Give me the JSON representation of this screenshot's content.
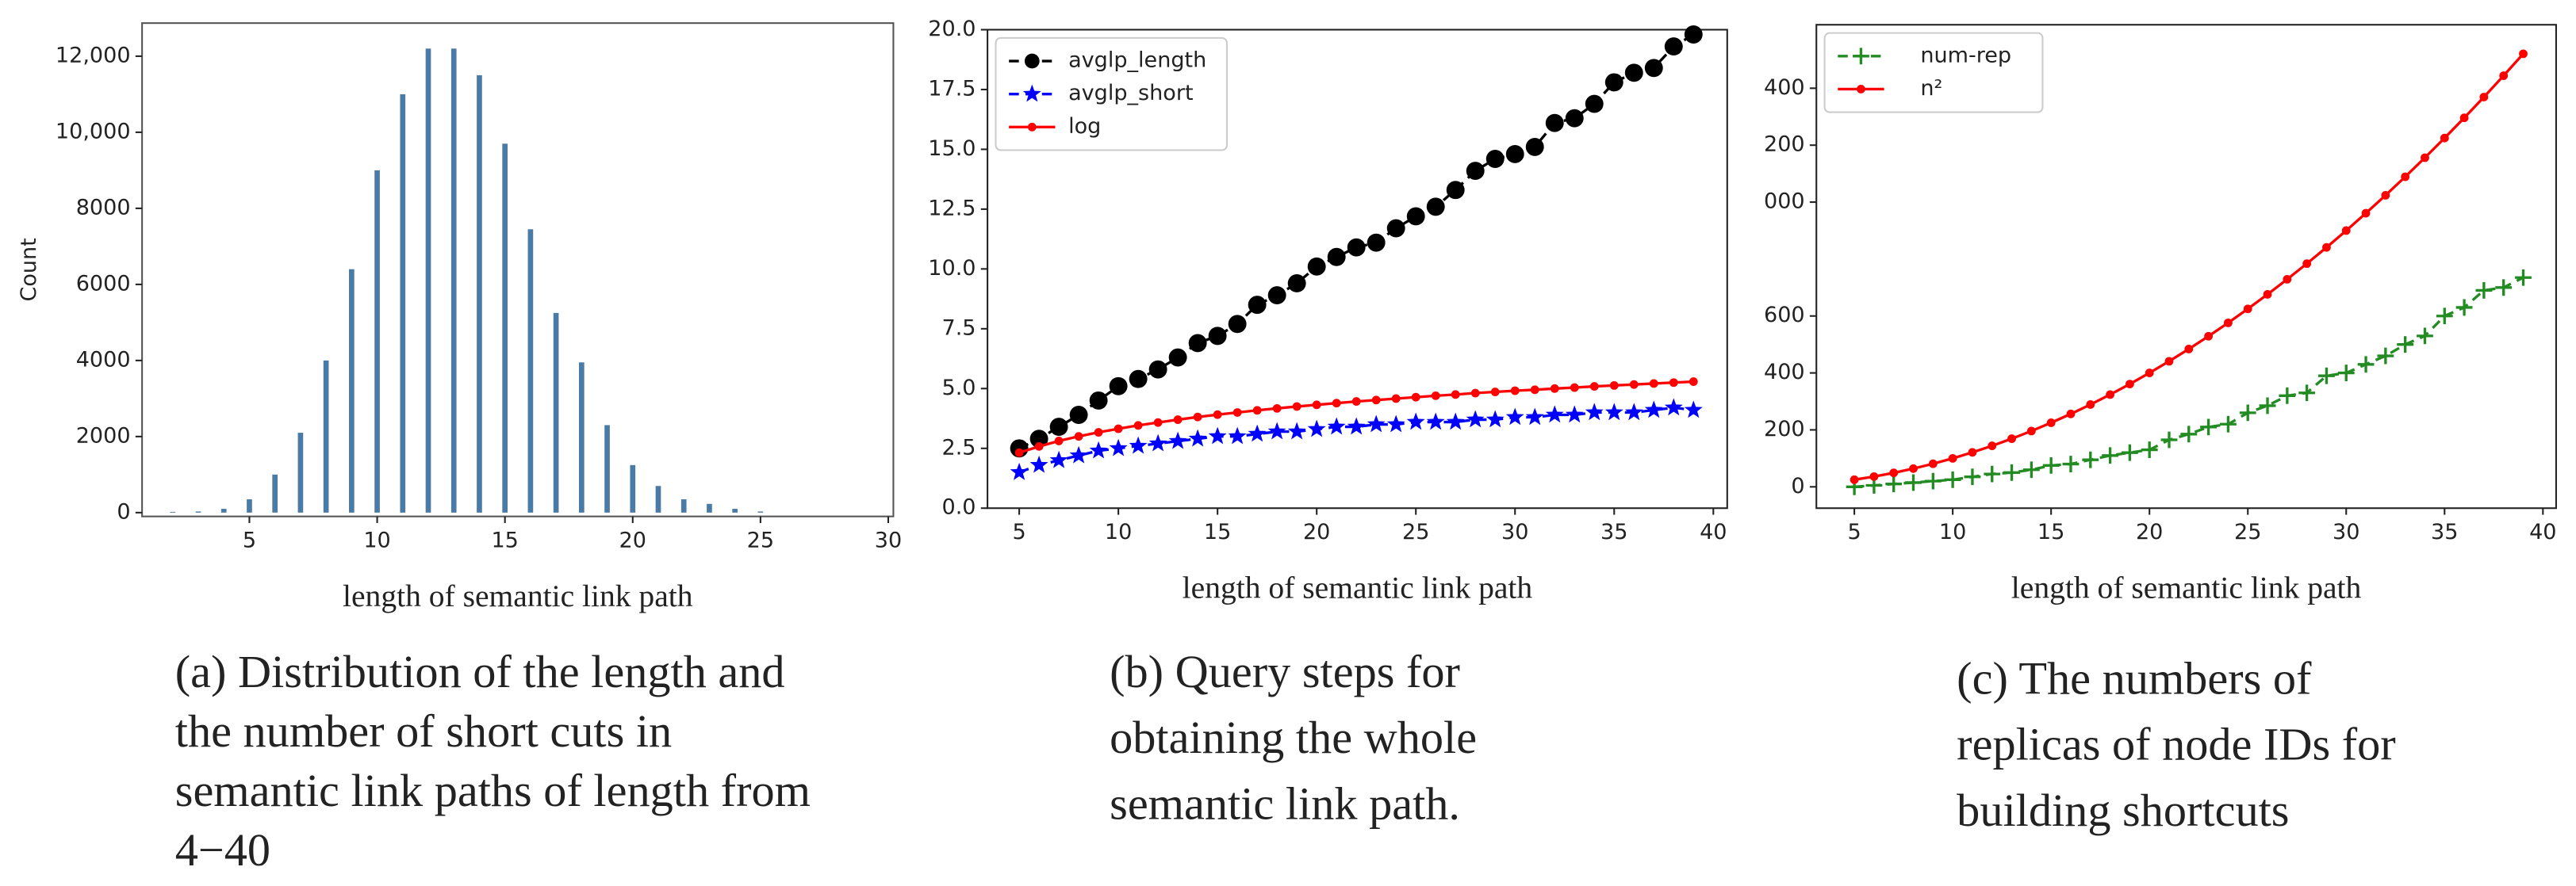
{
  "chart_data": [
    {
      "type": "bar",
      "ylabel": "Count",
      "xlabel": "length of semantic link path",
      "caption": [
        "(a) Distribution of the length and",
        "the number of short cuts in",
        "semantic link paths of length from",
        "4−40"
      ],
      "x": [
        2,
        3,
        4,
        5,
        6,
        7,
        8,
        9,
        10,
        11,
        12,
        13,
        14,
        15,
        16,
        17,
        18,
        19,
        20,
        21,
        22,
        23,
        24,
        25
      ],
      "values": [
        20,
        30,
        100,
        350,
        1000,
        2100,
        4000,
        6400,
        9000,
        11000,
        12200,
        12200,
        11500,
        9700,
        7450,
        5250,
        3950,
        2300,
        1250,
        700,
        350,
        230,
        100,
        30
      ],
      "color": "#4a7ba6",
      "xlim": [
        0.8,
        30.2
      ],
      "xticks": [
        5,
        10,
        15,
        20,
        25,
        30
      ],
      "ylim": [
        -100,
        12870
      ],
      "yticks": [
        0,
        2000,
        4000,
        6000,
        8000,
        {
          "value": 10000,
          "label": "10,000"
        },
        {
          "value": 12000,
          "label": "12,000"
        }
      ]
    },
    {
      "type": "line",
      "xlabel": "length of semantic link path",
      "caption": [
        "(b)  Query steps for",
        "obtaining the whole",
        "semantic link path."
      ],
      "x": [
        5,
        6,
        7,
        8,
        9,
        10,
        11,
        12,
        13,
        14,
        15,
        16,
        17,
        18,
        19,
        20,
        21,
        22,
        23,
        24,
        25,
        26,
        27,
        28,
        29,
        30,
        31,
        32,
        33,
        34,
        35,
        36,
        37,
        38,
        39
      ],
      "series": [
        {
          "name": "avglp_length",
          "color": "#000000",
          "marker": "circle",
          "linestyle": "dashed",
          "values": [
            2.5,
            2.9,
            3.4,
            3.9,
            4.5,
            5.1,
            5.4,
            5.8,
            6.3,
            6.9,
            7.2,
            7.7,
            8.5,
            8.9,
            9.4,
            10.1,
            10.5,
            10.9,
            11.1,
            11.7,
            12.2,
            12.6,
            13.3,
            14.1,
            14.6,
            14.8,
            15.1,
            16.1,
            16.3,
            16.9,
            17.8,
            18.2,
            18.4,
            19.3,
            19.8
          ]
        },
        {
          "name": "avglp_short",
          "color": "#0000ff",
          "marker": "star",
          "linestyle": "dashed",
          "values": [
            1.5,
            1.8,
            2.0,
            2.2,
            2.4,
            2.5,
            2.6,
            2.7,
            2.8,
            2.9,
            3.0,
            3.0,
            3.1,
            3.2,
            3.2,
            3.3,
            3.4,
            3.4,
            3.5,
            3.5,
            3.6,
            3.6,
            3.6,
            3.7,
            3.7,
            3.8,
            3.8,
            3.9,
            3.9,
            4.0,
            4.0,
            4.0,
            4.1,
            4.2,
            4.1
          ]
        },
        {
          "name": "log",
          "color": "#ff0000",
          "marker": "dot",
          "linestyle": "solid",
          "values": [
            2.32,
            2.58,
            2.81,
            3.0,
            3.17,
            3.32,
            3.46,
            3.58,
            3.7,
            3.81,
            3.91,
            4.0,
            4.09,
            4.17,
            4.25,
            4.32,
            4.39,
            4.46,
            4.52,
            4.58,
            4.64,
            4.7,
            4.75,
            4.81,
            4.86,
            4.91,
            4.95,
            5.0,
            5.04,
            5.09,
            5.13,
            5.17,
            5.21,
            5.25,
            5.29
          ]
        }
      ],
      "legend": "upper left",
      "xlim": [
        3.4,
        40.7
      ],
      "xticks": [
        5,
        10,
        15,
        20,
        25,
        30,
        35,
        40
      ],
      "ylim": [
        0,
        20
      ],
      "yticks": [
        {
          "value": 0,
          "label": "0.0"
        },
        2.5,
        {
          "value": 5,
          "label": "5.0"
        },
        7.5,
        {
          "value": 10,
          "label": "10.0"
        },
        12.5,
        {
          "value": 15,
          "label": "15.0"
        },
        17.5,
        {
          "value": 20,
          "label": "20.0"
        }
      ]
    },
    {
      "type": "line",
      "xlabel": "length of semantic link path",
      "caption": [
        "(c) The numbers of",
        "replicas of node IDs for",
        "building shortcuts"
      ],
      "x": [
        5,
        6,
        7,
        8,
        9,
        10,
        11,
        12,
        13,
        14,
        15,
        16,
        17,
        18,
        19,
        20,
        21,
        22,
        23,
        24,
        25,
        26,
        27,
        28,
        29,
        30,
        31,
        32,
        33,
        34,
        35,
        36,
        37,
        38,
        39
      ],
      "series": [
        {
          "name": "num-rep",
          "color": "#228b22",
          "marker": "plus",
          "linestyle": "dashed",
          "values": [
            0,
            5,
            10,
            15,
            20,
            25,
            35,
            45,
            50,
            60,
            75,
            80,
            95,
            110,
            120,
            130,
            165,
            185,
            210,
            220,
            260,
            285,
            320,
            330,
            390,
            400,
            430,
            460,
            500,
            530,
            600,
            630,
            690,
            700,
            735
          ]
        },
        {
          "name": "n²",
          "color": "#ff0000",
          "marker": "dot",
          "linestyle": "solid",
          "values": [
            25,
            36,
            49,
            64,
            81,
            100,
            121,
            144,
            169,
            196,
            225,
            256,
            289,
            324,
            361,
            400,
            441,
            484,
            529,
            576,
            625,
            676,
            729,
            784,
            841,
            900,
            961,
            1024,
            1089,
            1156,
            1225,
            1296,
            1369,
            1444,
            1521
          ]
        }
      ],
      "legend": "upper left",
      "xlim": [
        3.07,
        40.67
      ],
      "xticks": [
        5,
        10,
        15,
        20,
        25,
        30,
        35,
        40
      ],
      "ylim": [
        -75,
        1623
      ],
      "yticks": [
        0,
        200,
        400,
        600,
        {
          "value": 1000,
          "label": "000"
        },
        {
          "value": 1200,
          "label": "200"
        },
        {
          "value": 1400,
          "label": "400"
        }
      ]
    }
  ]
}
